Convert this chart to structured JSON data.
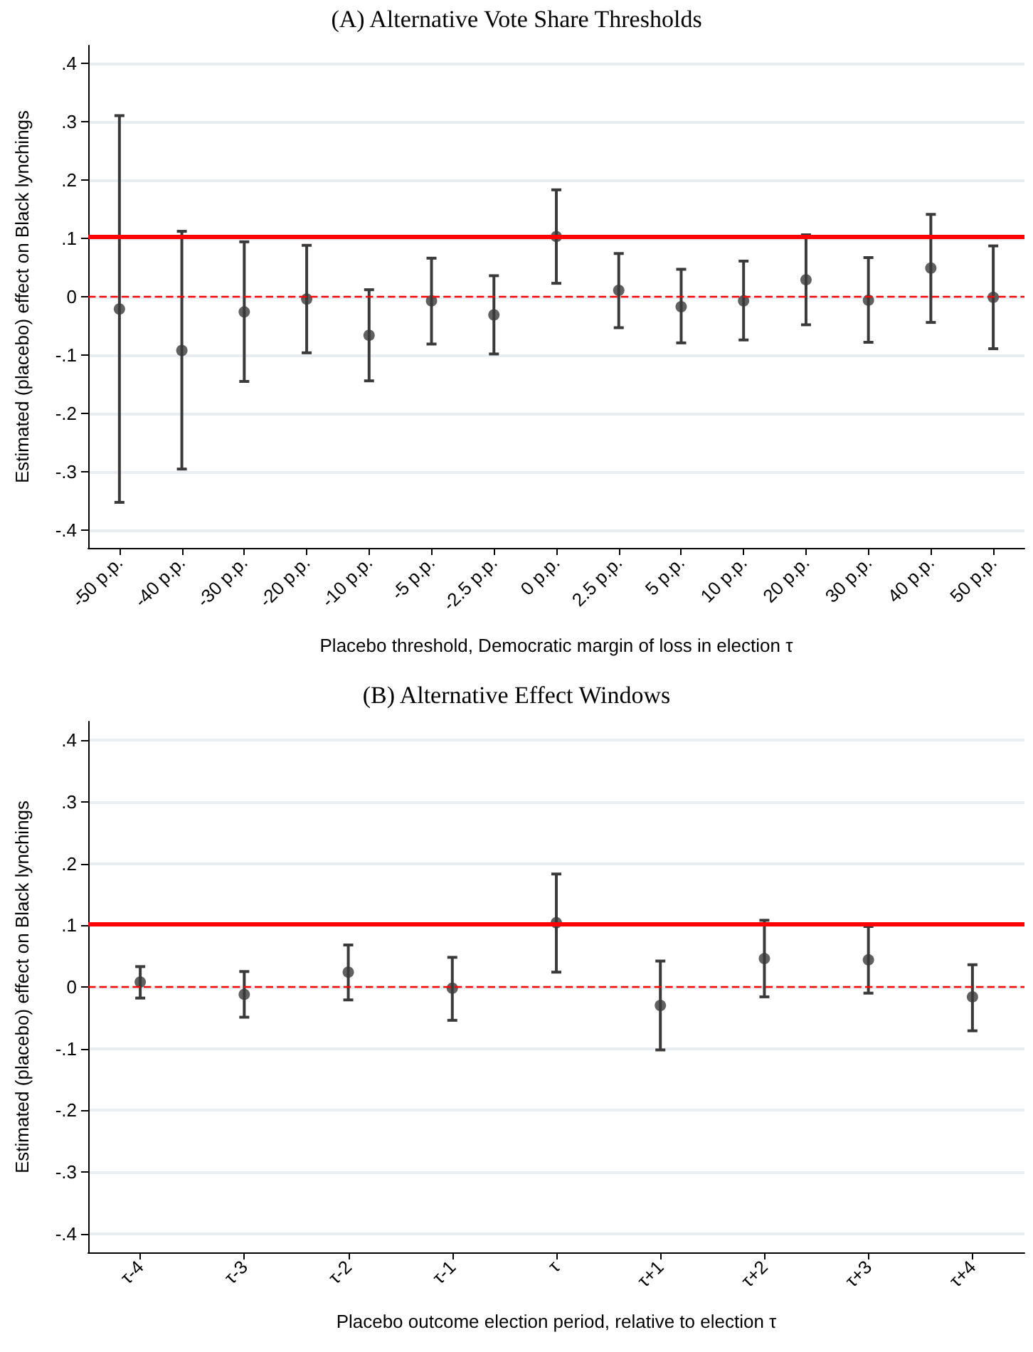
{
  "chart_data": [
    {
      "type": "scatter",
      "title": "(A) Alternative Vote Share Thresholds",
      "xlabel": "Placebo threshold, Democratic margin of loss in election τ",
      "ylabel": "Estimated (placebo) effect on Black lynchings",
      "categories": [
        "-50 p.p.",
        "-40 p.p.",
        "-30 p.p.",
        "-20 p.p.",
        "-10 p.p.",
        "-5 p.p.",
        "-2.5 p.p.",
        "0 p.p.",
        "2.5 p.p.",
        "5 p.p.",
        "10 p.p.",
        "20 p.p.",
        "30 p.p.",
        "40 p.p.",
        "50 p.p."
      ],
      "series": [
        {
          "color": "#3a3a3a",
          "values": [
            -0.021,
            -0.092,
            -0.026,
            -0.004,
            -0.066,
            -0.007,
            -0.031,
            0.103,
            0.011,
            -0.017,
            -0.007,
            0.029,
            -0.006,
            0.049,
            -0.001
          ],
          "errors": [
            [
              -0.352,
              0.31
            ],
            [
              -0.295,
              0.112
            ],
            [
              -0.145,
              0.094
            ],
            [
              -0.096,
              0.088
            ],
            [
              -0.144,
              0.012
            ],
            [
              -0.081,
              0.066
            ],
            [
              -0.098,
              0.036
            ],
            [
              0.023,
              0.183
            ],
            [
              -0.053,
              0.074
            ],
            [
              -0.079,
              0.047
            ],
            [
              -0.074,
              0.061
            ],
            [
              -0.048,
              0.106
            ],
            [
              -0.078,
              0.067
            ],
            [
              -0.044,
              0.141
            ],
            [
              -0.089,
              0.087
            ]
          ]
        }
      ],
      "ylim": [
        -0.43,
        0.43
      ],
      "yticks": [
        {
          "value": -0.4,
          "label": "-.4"
        },
        {
          "value": -0.3,
          "label": "-.3"
        },
        {
          "value": -0.2,
          "label": "-.2"
        },
        {
          "value": -0.1,
          "label": "-.1"
        },
        0,
        {
          "value": 0.1,
          "label": ".1"
        },
        {
          "value": 0.2,
          "label": ".2"
        },
        {
          "value": 0.3,
          "label": ".3"
        },
        {
          "value": 0.4,
          "label": ".4"
        }
      ],
      "ref_lines": [
        {
          "axis": "y",
          "value": 0.103,
          "color": "#ff0000",
          "line_style": "solid"
        },
        {
          "axis": "y",
          "value": 0,
          "color": "#ff0000",
          "line_style": "dashed"
        }
      ],
      "grid": "y",
      "marker": "circle"
    },
    {
      "type": "scatter",
      "title": "(B) Alternative Effect Windows",
      "xlabel": "Placebo outcome election period, relative to election τ",
      "ylabel": "Estimated (placebo) effect on Black lynchings",
      "categories": [
        "τ-4",
        "τ-3",
        "τ-2",
        "τ-1",
        "τ",
        "τ+1",
        "τ+2",
        "τ+3",
        "τ+4"
      ],
      "series": [
        {
          "color": "#3a3a3a",
          "values": [
            0.008,
            -0.012,
            0.024,
            -0.002,
            0.104,
            -0.03,
            0.046,
            0.044,
            -0.016
          ],
          "errors": [
            [
              -0.018,
              0.033
            ],
            [
              -0.049,
              0.025
            ],
            [
              -0.021,
              0.068
            ],
            [
              -0.054,
              0.048
            ],
            [
              0.024,
              0.183
            ],
            [
              -0.102,
              0.042
            ],
            [
              -0.016,
              0.108
            ],
            [
              -0.01,
              0.098
            ],
            [
              -0.071,
              0.036
            ]
          ]
        }
      ],
      "ylim": [
        -0.43,
        0.43
      ],
      "yticks": [
        {
          "value": -0.4,
          "label": "-.4"
        },
        {
          "value": -0.3,
          "label": "-.3"
        },
        {
          "value": -0.2,
          "label": "-.2"
        },
        {
          "value": -0.1,
          "label": "-.1"
        },
        0,
        {
          "value": 0.1,
          "label": ".1"
        },
        {
          "value": 0.2,
          "label": ".2"
        },
        {
          "value": 0.3,
          "label": ".3"
        },
        {
          "value": 0.4,
          "label": ".4"
        }
      ],
      "ref_lines": [
        {
          "axis": "y",
          "value": 0.103,
          "color": "#ff0000",
          "line_style": "solid"
        },
        {
          "axis": "y",
          "value": 0,
          "color": "#ff0000",
          "line_style": "dashed"
        }
      ],
      "grid": "y",
      "marker": "circle"
    }
  ]
}
